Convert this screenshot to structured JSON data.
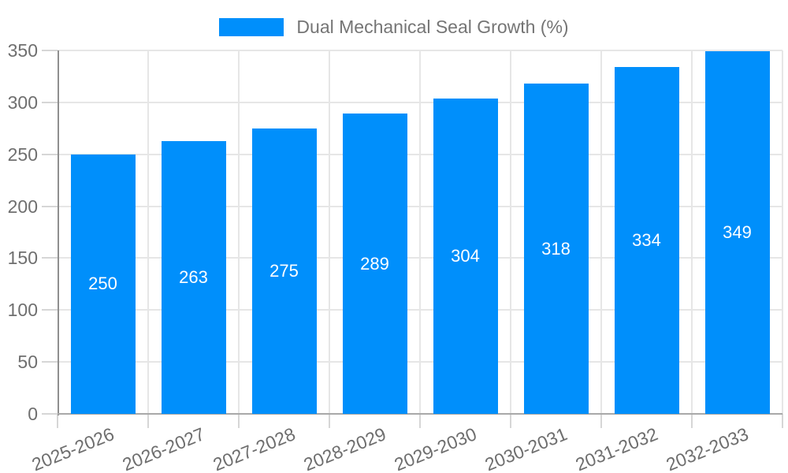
{
  "legend": {
    "label": "Dual Mechanical Seal Growth (%)"
  },
  "chart_data": {
    "type": "bar",
    "title": "Dual Mechanical Seal Growth (%)",
    "categories": [
      "2025-2026",
      "2026-2027",
      "2027-2028",
      "2028-2029",
      "2029-2030",
      "2030-2031",
      "2031-2032",
      "2032-2033"
    ],
    "values": [
      250,
      263,
      275,
      289,
      304,
      318,
      334,
      349
    ],
    "value_labels": [
      "250",
      "263",
      "275",
      "289",
      "304",
      "318",
      "334",
      "349"
    ],
    "ytick_labels": [
      "0",
      "50",
      "100",
      "150",
      "200",
      "250",
      "300",
      "350"
    ],
    "ylim": [
      0,
      350
    ],
    "ytick_step": 50,
    "xlabel": "",
    "ylabel": "",
    "grid": true,
    "legend_position": "top",
    "bar_color": "#008FFB",
    "value_label_color": "#ffffff",
    "axis_text_color": "#6f6f6f"
  }
}
